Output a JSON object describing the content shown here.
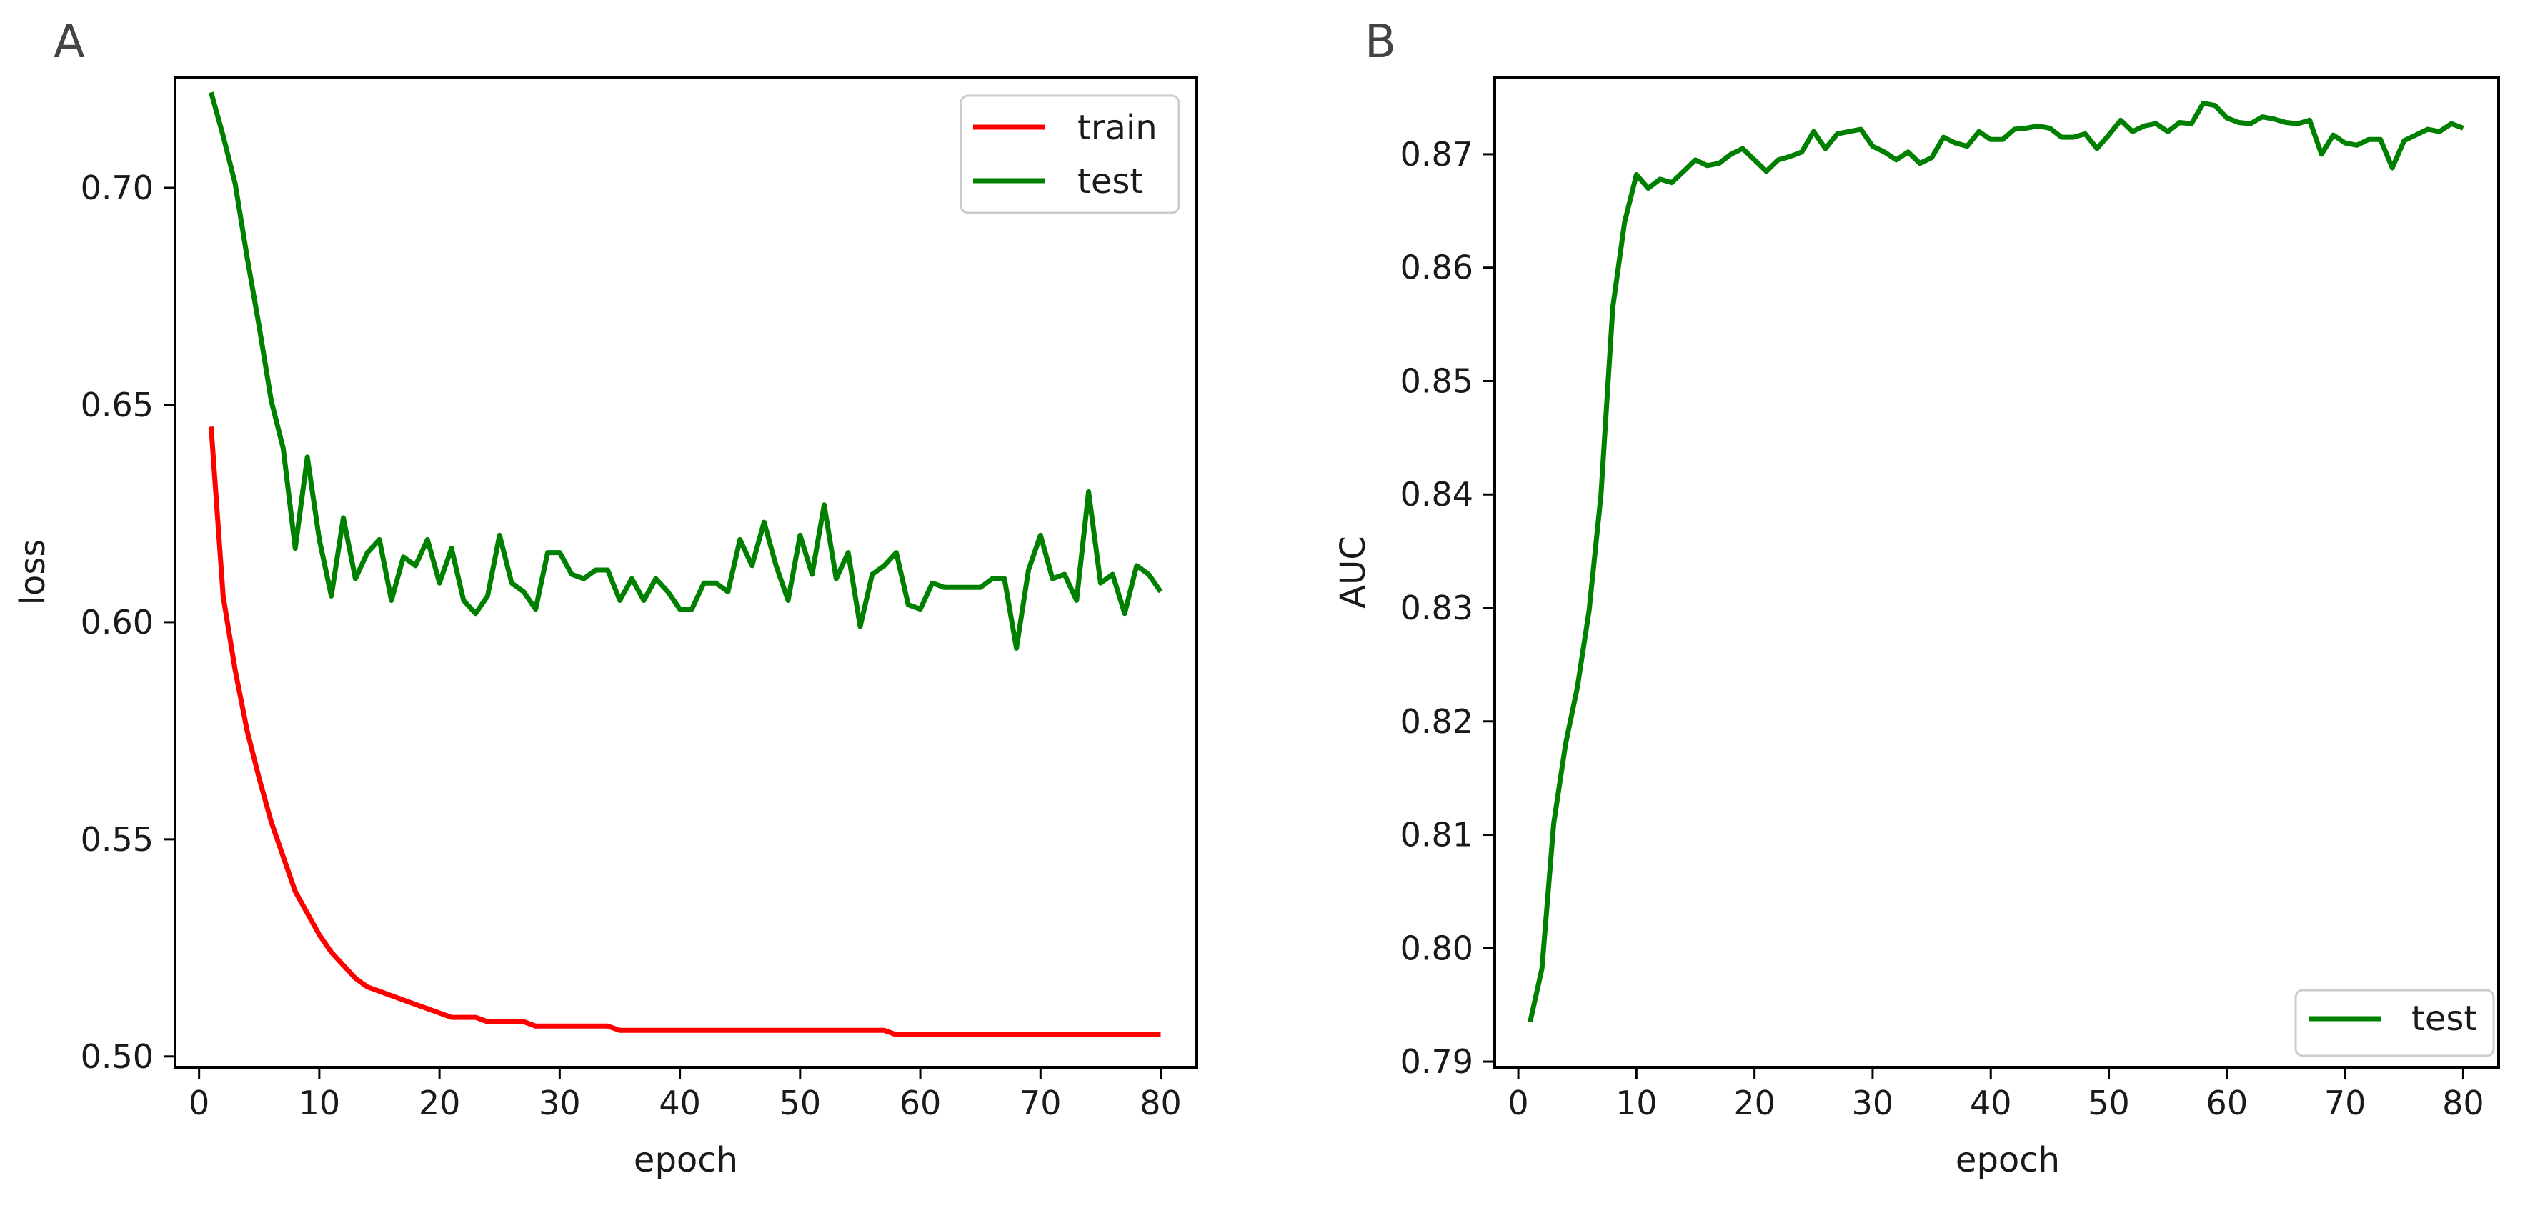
{
  "chart_data": [
    {
      "panel_label": "A",
      "type": "line",
      "xlabel": "epoch",
      "ylabel": "loss",
      "xlim": [
        -2,
        83
      ],
      "ylim": [
        0.4975,
        0.7255
      ],
      "xticks": [
        0,
        10,
        20,
        30,
        40,
        50,
        60,
        70,
        80
      ],
      "yticks": [
        0.5,
        0.55,
        0.6,
        0.65,
        0.7
      ],
      "ytick_labels": [
        "0.50",
        "0.55",
        "0.60",
        "0.65",
        "0.70"
      ],
      "legend": {
        "position": "upper-right"
      },
      "x": [
        1,
        2,
        3,
        4,
        5,
        6,
        7,
        8,
        9,
        10,
        11,
        12,
        13,
        14,
        15,
        16,
        17,
        18,
        19,
        20,
        21,
        22,
        23,
        24,
        25,
        26,
        27,
        28,
        29,
        30,
        31,
        32,
        33,
        34,
        35,
        36,
        37,
        38,
        39,
        40,
        41,
        42,
        43,
        44,
        45,
        46,
        47,
        48,
        49,
        50,
        51,
        52,
        53,
        54,
        55,
        56,
        57,
        58,
        59,
        60,
        61,
        62,
        63,
        64,
        65,
        66,
        67,
        68,
        69,
        70,
        71,
        72,
        73,
        74,
        75,
        76,
        77,
        78,
        79,
        80
      ],
      "series": [
        {
          "name": "train",
          "color": "#ff0000",
          "values": [
            0.645,
            0.606,
            0.589,
            0.575,
            0.564,
            0.554,
            0.546,
            0.538,
            0.533,
            0.528,
            0.524,
            0.521,
            0.518,
            0.516,
            0.515,
            0.514,
            0.513,
            0.512,
            0.511,
            0.51,
            0.509,
            0.509,
            0.509,
            0.508,
            0.508,
            0.508,
            0.508,
            0.507,
            0.507,
            0.507,
            0.507,
            0.507,
            0.507,
            0.507,
            0.506,
            0.506,
            0.506,
            0.506,
            0.506,
            0.506,
            0.506,
            0.506,
            0.506,
            0.506,
            0.506,
            0.506,
            0.506,
            0.506,
            0.506,
            0.506,
            0.506,
            0.506,
            0.506,
            0.506,
            0.506,
            0.506,
            0.506,
            0.505,
            0.505,
            0.505,
            0.505,
            0.505,
            0.505,
            0.505,
            0.505,
            0.505,
            0.505,
            0.505,
            0.505,
            0.505,
            0.505,
            0.505,
            0.505,
            0.505,
            0.505,
            0.505,
            0.505,
            0.505,
            0.505,
            0.505
          ]
        },
        {
          "name": "test",
          "color": "#008000",
          "values": [
            0.722,
            0.712,
            0.701,
            0.684,
            0.668,
            0.651,
            0.64,
            0.617,
            0.638,
            0.619,
            0.606,
            0.624,
            0.61,
            0.616,
            0.619,
            0.605,
            0.615,
            0.613,
            0.619,
            0.609,
            0.617,
            0.605,
            0.602,
            0.606,
            0.62,
            0.609,
            0.607,
            0.603,
            0.616,
            0.616,
            0.611,
            0.61,
            0.612,
            0.612,
            0.605,
            0.61,
            0.605,
            0.61,
            0.607,
            0.603,
            0.603,
            0.609,
            0.609,
            0.607,
            0.619,
            0.613,
            0.623,
            0.613,
            0.605,
            0.62,
            0.611,
            0.627,
            0.61,
            0.616,
            0.599,
            0.611,
            0.613,
            0.616,
            0.604,
            0.603,
            0.609,
            0.608,
            0.608,
            0.608,
            0.608,
            0.61,
            0.61,
            0.594,
            0.612,
            0.62,
            0.61,
            0.611,
            0.605,
            0.63,
            0.609,
            0.611,
            0.602,
            0.613,
            0.611,
            0.607
          ]
        }
      ]
    },
    {
      "panel_label": "B",
      "type": "line",
      "xlabel": "epoch",
      "ylabel": "AUC",
      "xlim": [
        -2,
        83
      ],
      "ylim": [
        0.7895,
        0.8768
      ],
      "xticks": [
        0,
        10,
        20,
        30,
        40,
        50,
        60,
        70,
        80
      ],
      "yticks": [
        0.79,
        0.8,
        0.81,
        0.82,
        0.83,
        0.84,
        0.85,
        0.86,
        0.87
      ],
      "ytick_labels": [
        "0.79",
        "0.80",
        "0.81",
        "0.82",
        "0.83",
        "0.84",
        "0.85",
        "0.86",
        "0.87"
      ],
      "legend": {
        "position": "lower-right"
      },
      "x": [
        1,
        2,
        3,
        4,
        5,
        6,
        7,
        8,
        9,
        10,
        11,
        12,
        13,
        14,
        15,
        16,
        17,
        18,
        19,
        20,
        21,
        22,
        23,
        24,
        25,
        26,
        27,
        28,
        29,
        30,
        31,
        32,
        33,
        34,
        35,
        36,
        37,
        38,
        39,
        40,
        41,
        42,
        43,
        44,
        45,
        46,
        47,
        48,
        49,
        50,
        51,
        52,
        53,
        54,
        55,
        56,
        57,
        58,
        59,
        60,
        61,
        62,
        63,
        64,
        65,
        66,
        67,
        68,
        69,
        70,
        71,
        72,
        73,
        74,
        75,
        76,
        77,
        78,
        79,
        80
      ],
      "series": [
        {
          "name": "test",
          "color": "#008000",
          "values": [
            0.7935,
            0.7982,
            0.811,
            0.818,
            0.823,
            0.8298,
            0.84,
            0.8565,
            0.864,
            0.8682,
            0.867,
            0.8678,
            0.8675,
            0.8685,
            0.8695,
            0.869,
            0.8692,
            0.87,
            0.8705,
            0.8695,
            0.8685,
            0.8695,
            0.8698,
            0.8702,
            0.872,
            0.8705,
            0.8718,
            0.872,
            0.8722,
            0.8707,
            0.8702,
            0.8695,
            0.8702,
            0.8692,
            0.8697,
            0.8715,
            0.871,
            0.8707,
            0.872,
            0.8713,
            0.8713,
            0.8722,
            0.8723,
            0.8725,
            0.8723,
            0.8715,
            0.8715,
            0.8718,
            0.8705,
            0.8717,
            0.873,
            0.872,
            0.8725,
            0.8727,
            0.872,
            0.8728,
            0.8727,
            0.8745,
            0.8743,
            0.8732,
            0.8728,
            0.8727,
            0.8733,
            0.8731,
            0.8728,
            0.8727,
            0.873,
            0.87,
            0.8717,
            0.871,
            0.8708,
            0.8713,
            0.8713,
            0.8688,
            0.8712,
            0.8717,
            0.8722,
            0.872,
            0.8727,
            0.8723
          ]
        }
      ]
    }
  ]
}
